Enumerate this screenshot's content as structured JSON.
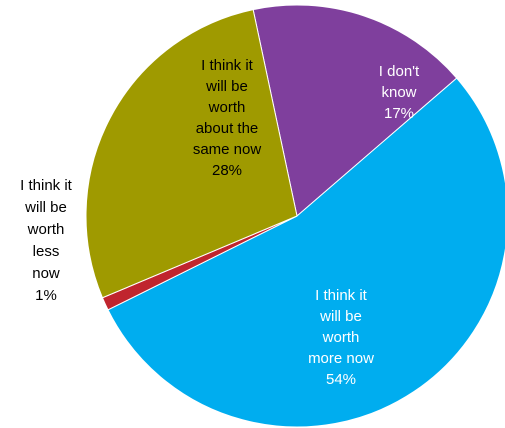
{
  "chart_data": {
    "type": "pie",
    "title": "",
    "legend": "none",
    "slices": [
      {
        "name": "I don't know",
        "value": 17,
        "percent_label": "17%",
        "label_lines": [
          "I don't",
          "know",
          "17%"
        ],
        "color": "#7f3f9d"
      },
      {
        "name": "I think it will be worth more now",
        "value": 54,
        "percent_label": "54%",
        "label_lines": [
          "I think it",
          "will be",
          "worth",
          "more now",
          "54%"
        ],
        "color": "#00adef"
      },
      {
        "name": "I think it will be worth less now",
        "value": 1,
        "percent_label": "1%",
        "label_lines": [
          "I think it",
          "will be",
          "worth",
          "less",
          "now",
          "1%"
        ],
        "color": "#c0252e"
      },
      {
        "name": "I think it will be worth about the same now",
        "value": 28,
        "percent_label": "28%",
        "label_lines": [
          "I think it",
          "will be",
          "worth",
          "about the",
          "same now",
          "28%"
        ],
        "color": "#9f9a00"
      }
    ]
  }
}
